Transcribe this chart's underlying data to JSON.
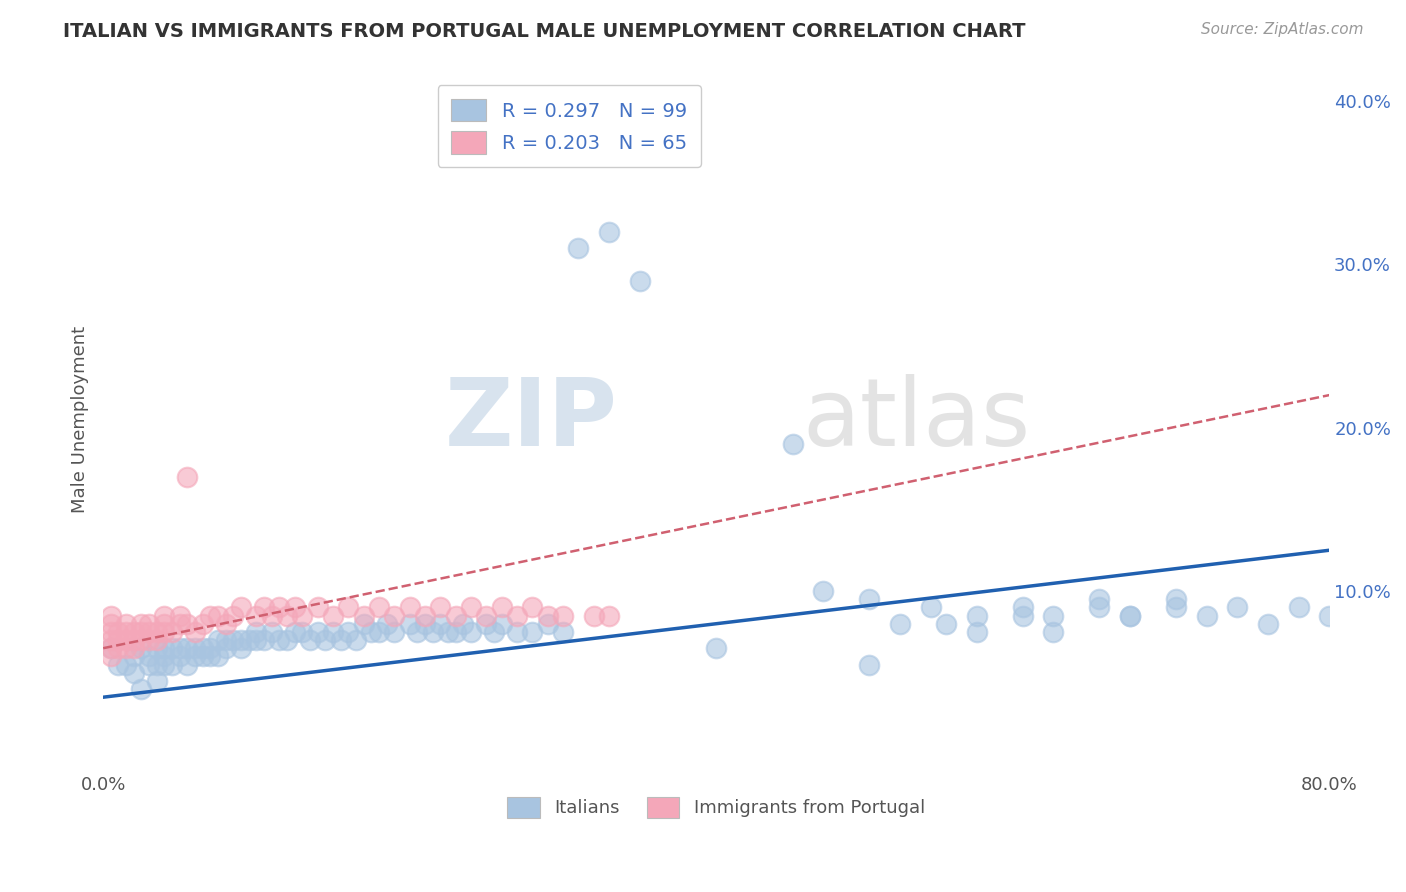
{
  "title": "ITALIAN VS IMMIGRANTS FROM PORTUGAL MALE UNEMPLOYMENT CORRELATION CHART",
  "source": "Source: ZipAtlas.com",
  "ylabel": "Male Unemployment",
  "x_min": 0.0,
  "x_max": 0.8,
  "y_min": -0.01,
  "y_max": 0.42,
  "y_ticks_right": [
    0.0,
    0.1,
    0.2,
    0.3,
    0.4
  ],
  "y_tick_labels_right": [
    "",
    "10.0%",
    "20.0%",
    "30.0%",
    "40.0%"
  ],
  "legend_blue_label": "R = 0.297   N = 99",
  "legend_pink_label": "R = 0.203   N = 65",
  "legend_italians": "Italians",
  "legend_portugal": "Immigrants from Portugal",
  "blue_color": "#a8c4e0",
  "pink_color": "#f4a7b9",
  "blue_line_color": "#2060b0",
  "pink_line_color": "#d06070",
  "watermark_zip": "ZIP",
  "watermark_atlas": "atlas",
  "blue_scatter_x": [
    0.005,
    0.01,
    0.015,
    0.02,
    0.02,
    0.025,
    0.025,
    0.03,
    0.03,
    0.035,
    0.035,
    0.035,
    0.04,
    0.04,
    0.04,
    0.045,
    0.045,
    0.05,
    0.05,
    0.055,
    0.055,
    0.06,
    0.06,
    0.065,
    0.065,
    0.07,
    0.07,
    0.075,
    0.075,
    0.08,
    0.08,
    0.085,
    0.09,
    0.09,
    0.095,
    0.1,
    0.1,
    0.105,
    0.11,
    0.115,
    0.12,
    0.125,
    0.13,
    0.135,
    0.14,
    0.145,
    0.15,
    0.155,
    0.16,
    0.165,
    0.17,
    0.175,
    0.18,
    0.185,
    0.19,
    0.2,
    0.205,
    0.21,
    0.215,
    0.22,
    0.225,
    0.23,
    0.235,
    0.24,
    0.25,
    0.255,
    0.26,
    0.27,
    0.28,
    0.29,
    0.3,
    0.31,
    0.33,
    0.35,
    0.4,
    0.45,
    0.5,
    0.52,
    0.55,
    0.57,
    0.6,
    0.62,
    0.65,
    0.67,
    0.7,
    0.72,
    0.74,
    0.76,
    0.78,
    0.8,
    0.47,
    0.5,
    0.54,
    0.57,
    0.6,
    0.62,
    0.65,
    0.67,
    0.7
  ],
  "blue_scatter_y": [
    0.065,
    0.055,
    0.055,
    0.05,
    0.06,
    0.04,
    0.065,
    0.055,
    0.06,
    0.045,
    0.055,
    0.065,
    0.06,
    0.055,
    0.065,
    0.055,
    0.065,
    0.06,
    0.065,
    0.055,
    0.065,
    0.06,
    0.065,
    0.06,
    0.065,
    0.06,
    0.065,
    0.06,
    0.07,
    0.065,
    0.07,
    0.07,
    0.065,
    0.07,
    0.07,
    0.07,
    0.075,
    0.07,
    0.075,
    0.07,
    0.07,
    0.075,
    0.075,
    0.07,
    0.075,
    0.07,
    0.075,
    0.07,
    0.075,
    0.07,
    0.08,
    0.075,
    0.075,
    0.08,
    0.075,
    0.08,
    0.075,
    0.08,
    0.075,
    0.08,
    0.075,
    0.075,
    0.08,
    0.075,
    0.08,
    0.075,
    0.08,
    0.075,
    0.075,
    0.08,
    0.075,
    0.31,
    0.32,
    0.29,
    0.065,
    0.19,
    0.055,
    0.08,
    0.08,
    0.075,
    0.085,
    0.075,
    0.095,
    0.085,
    0.09,
    0.085,
    0.09,
    0.08,
    0.09,
    0.085,
    0.1,
    0.095,
    0.09,
    0.085,
    0.09,
    0.085,
    0.09,
    0.085,
    0.095
  ],
  "pink_scatter_x": [
    0.005,
    0.005,
    0.005,
    0.005,
    0.005,
    0.005,
    0.01,
    0.01,
    0.01,
    0.015,
    0.015,
    0.015,
    0.015,
    0.02,
    0.02,
    0.02,
    0.025,
    0.025,
    0.025,
    0.03,
    0.03,
    0.03,
    0.035,
    0.035,
    0.04,
    0.04,
    0.04,
    0.045,
    0.05,
    0.05,
    0.055,
    0.055,
    0.06,
    0.065,
    0.07,
    0.075,
    0.08,
    0.085,
    0.09,
    0.1,
    0.105,
    0.11,
    0.115,
    0.12,
    0.125,
    0.13,
    0.14,
    0.15,
    0.16,
    0.17,
    0.18,
    0.19,
    0.2,
    0.21,
    0.22,
    0.23,
    0.24,
    0.25,
    0.26,
    0.27,
    0.28,
    0.29,
    0.3,
    0.32,
    0.33
  ],
  "pink_scatter_y": [
    0.06,
    0.065,
    0.07,
    0.075,
    0.08,
    0.085,
    0.065,
    0.07,
    0.075,
    0.065,
    0.07,
    0.075,
    0.08,
    0.065,
    0.07,
    0.075,
    0.07,
    0.075,
    0.08,
    0.07,
    0.075,
    0.08,
    0.07,
    0.075,
    0.075,
    0.08,
    0.085,
    0.075,
    0.08,
    0.085,
    0.08,
    0.17,
    0.075,
    0.08,
    0.085,
    0.085,
    0.08,
    0.085,
    0.09,
    0.085,
    0.09,
    0.085,
    0.09,
    0.085,
    0.09,
    0.085,
    0.09,
    0.085,
    0.09,
    0.085,
    0.09,
    0.085,
    0.09,
    0.085,
    0.09,
    0.085,
    0.09,
    0.085,
    0.09,
    0.085,
    0.09,
    0.085,
    0.085,
    0.085,
    0.085
  ],
  "blue_line_x": [
    0.0,
    0.8
  ],
  "blue_line_y": [
    0.035,
    0.125
  ],
  "pink_line_x": [
    0.0,
    0.8
  ],
  "pink_line_y": [
    0.065,
    0.22
  ],
  "background_color": "#ffffff",
  "grid_color": "#c8c8c8"
}
